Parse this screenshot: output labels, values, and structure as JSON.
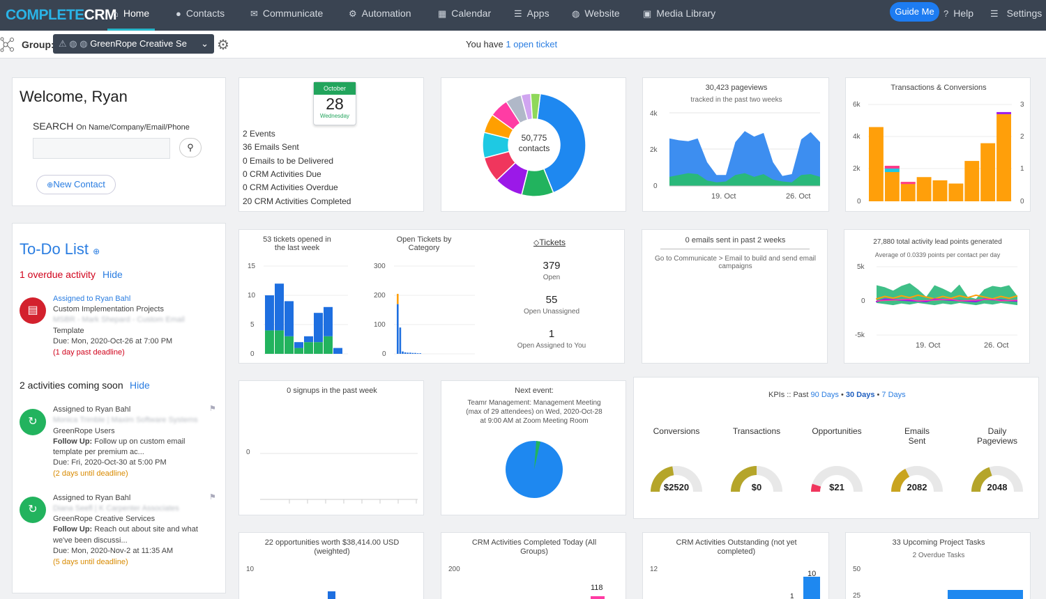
{
  "nav": {
    "logo_a": "COMPLETE",
    "logo_b": "CRM",
    "items": [
      {
        "label": "Home",
        "icon": "home-icon"
      },
      {
        "label": "Contacts",
        "icon": "user-icon"
      },
      {
        "label": "Communicate",
        "icon": "envelope-icon"
      },
      {
        "label": "Automation",
        "icon": "gears-icon"
      },
      {
        "label": "Calendar",
        "icon": "calendar-icon"
      },
      {
        "label": "Apps",
        "icon": "list-icon"
      },
      {
        "label": "Website",
        "icon": "globe-icon"
      },
      {
        "label": "Media Library",
        "icon": "folder-icon"
      }
    ],
    "guide": "Guide Me",
    "help": "Help",
    "settings": "Settings"
  },
  "subbar": {
    "group_label": "Group:",
    "group_value": "GreenRope Creative Se",
    "ticket_prefix": "You have",
    "ticket_link": "1 open ticket"
  },
  "welcome": {
    "title": "Welcome, Ryan",
    "search_label": "SEARCH",
    "search_hint": "On Name/Company/Email/Phone",
    "new_contact": "New Contact"
  },
  "calendar": {
    "month": "October",
    "day": "28",
    "weekday": "Wednesday",
    "stats": [
      {
        "n": "2",
        "label": "Events"
      },
      {
        "n": "36",
        "label": "Emails Sent"
      },
      {
        "n": "0",
        "label": "Emails to be Delivered"
      },
      {
        "n": "0",
        "label": "CRM Activities Due"
      },
      {
        "n": "0",
        "label": "CRM Activities Overdue"
      },
      {
        "n": "20",
        "label": "CRM Activities Completed"
      }
    ]
  },
  "contacts_donut": {
    "value": "50,775",
    "label": "contacts",
    "colors": [
      "#1e88f0",
      "#22b35e",
      "#9b19e8",
      "#f0365d",
      "#1ec9e3",
      "#ff9f00",
      "#ff3ca4",
      "#b0b8c8",
      "#d0a5f0",
      "#8fd85a"
    ],
    "fractions": [
      0.42,
      0.1,
      0.09,
      0.08,
      0.08,
      0.06,
      0.06,
      0.05,
      0.03,
      0.03
    ]
  },
  "pageviews": {
    "title": "30,423 pageviews",
    "subtitle": "tracked in the past two weeks",
    "y_ticks": [
      "4k",
      "2k",
      "0"
    ],
    "x_ticks": [
      "19. Oct",
      "26. Oct"
    ],
    "series_total": [
      2600,
      2500,
      2450,
      2600,
      1300,
      600,
      600,
      2400,
      3000,
      2700,
      2900,
      1300,
      550,
      650,
      2550,
      2950,
      2400
    ],
    "series_base": [
      500,
      600,
      700,
      650,
      300,
      200,
      250,
      600,
      700,
      500,
      650,
      350,
      250,
      200,
      600,
      650,
      500
    ],
    "ymax": 4000
  },
  "transactions": {
    "title": "Transactions & Conversions",
    "y_left": [
      "6k",
      "4k",
      "2k",
      "0"
    ],
    "y_right": [
      "3",
      "2",
      "1",
      "0"
    ],
    "bars": [
      4600,
      2200,
      1200,
      1500,
      1300,
      1100,
      2500,
      3600,
      5400
    ],
    "ymax": 6000
  },
  "todo": {
    "title": "To-Do List",
    "overdue": "1 overdue activity",
    "hide": "Hide",
    "overdue_item": {
      "assigned": "Assigned to Ryan Bahl",
      "project": "Custom Implementation Projects",
      "blurred": "MSBR - Mark Shepard - Custom Email",
      "line3": "Template",
      "due": "Due: Mon, 2020-Oct-26 at 7:00 PM",
      "status": "(1 day past deadline)"
    },
    "coming": "2 activities coming soon",
    "coming_items": [
      {
        "assigned": "Assigned to Ryan Bahl",
        "blurred": "Monica Trimble | Maxim Software Systems",
        "group": "GreenRope Users",
        "follow_label": "Follow Up:",
        "follow": "Follow up on custom email",
        "follow2": "template per premium ac...",
        "due": "Due: Fri, 2020-Oct-30 at 5:00 PM",
        "status": "(2 days until deadline)"
      },
      {
        "assigned": "Assigned to Ryan Bahl",
        "blurred": "Diana Seefl | K Carpenter Associates",
        "group": "GreenRope Creative Services",
        "follow_label": "Follow Up:",
        "follow": "Reach out about site and what",
        "follow2": "we've been discussi...",
        "due": "Due: Mon, 2020-Nov-2 at 11:35 AM",
        "status": "(5 days until deadline)"
      }
    ]
  },
  "tickets": {
    "week_title": "53 tickets opened in the last week",
    "week_y": [
      "15",
      "10",
      "5",
      "0"
    ],
    "week_bars": [
      {
        "blue": 6,
        "green": 4
      },
      {
        "blue": 8,
        "green": 4
      },
      {
        "blue": 6,
        "green": 3
      },
      {
        "blue": 1,
        "green": 1
      },
      {
        "blue": 1,
        "green": 2
      },
      {
        "blue": 5,
        "green": 2
      },
      {
        "blue": 5,
        "green": 3
      },
      {
        "blue": 1,
        "green": 0
      }
    ],
    "week_ymax": 15,
    "cat_title": "Open Tickets by Category",
    "cat_y": [
      "300",
      "200",
      "100",
      "0"
    ],
    "cat_bars": [
      {
        "orange": 35,
        "blue": 170
      },
      {
        "orange": 0,
        "blue": 90
      },
      {
        "orange": 0,
        "blue": 8
      },
      {
        "orange": 0,
        "blue": 5
      },
      {
        "orange": 0,
        "blue": 4
      },
      {
        "orange": 0,
        "blue": 4
      },
      {
        "orange": 0,
        "blue": 3
      },
      {
        "orange": 0,
        "blue": 3
      },
      {
        "orange": 0,
        "blue": 2
      },
      {
        "orange": 0,
        "blue": 2
      }
    ],
    "cat_ymax": 300,
    "link": "Tickets",
    "stats": [
      {
        "n": "379",
        "label": "Open"
      },
      {
        "n": "55",
        "label": "Open Unassigned"
      },
      {
        "n": "1",
        "label": "Open Assigned to You"
      }
    ]
  },
  "emails": {
    "title": "0 emails sent in past 2 weeks",
    "body": "Go to Communicate > Email to build and send email campaigns"
  },
  "leadpoints": {
    "title": "27,880 total activity lead points generated",
    "subtitle": "Average of 0.0339 points per contact per day",
    "y_ticks": [
      "5k",
      "0",
      "-5k"
    ],
    "x_ticks": [
      "19. Oct",
      "26. Oct"
    ],
    "green": [
      2300,
      2000,
      1500,
      2200,
      2600,
      1700,
      600,
      2300,
      1800,
      1200,
      2400,
      600,
      300,
      1700,
      2200,
      2000,
      2300,
      700
    ],
    "ymin": -5000,
    "ymax": 5000
  },
  "signups": {
    "title": "0 signups in the past week",
    "y_tick": "0"
  },
  "next_event": {
    "title": "Next event:",
    "body1": "Teamr Management: Management Meeting",
    "body2": "(max of 29 attendees) on Wed, 2020-Oct-28",
    "body3": "at 9:00 AM at Zoom Meeting Room"
  },
  "kpis": {
    "prefix": "KPIs :: Past",
    "p90": "90 Days",
    "p30": "30 Days",
    "p7": "7 Days",
    "items": [
      {
        "label": "Conversions",
        "label2": "",
        "value": "$2520",
        "fill": 0.45,
        "color": "#b5a52a"
      },
      {
        "label": "Transactions",
        "label2": "",
        "value": "$0",
        "fill": 0.5,
        "color": "#b5a52a"
      },
      {
        "label": "Opportunities",
        "label2": "",
        "value": "$21",
        "fill": 0.1,
        "color": "#f0365d"
      },
      {
        "label": "Emails",
        "label2": "Sent",
        "value": "2082",
        "fill": 0.35,
        "color": "#c9a41f"
      },
      {
        "label": "Daily",
        "label2": "Pageviews",
        "value": "2048",
        "fill": 0.4,
        "color": "#b5a52a"
      }
    ]
  },
  "bottom": [
    {
      "title": "22 opportunities worth $38,414.00 USD",
      "title2": "(weighted)",
      "y": "10"
    },
    {
      "title": "CRM Activities Completed Today (All",
      "title2": "Groups)",
      "y": "200",
      "val": "118"
    },
    {
      "title": "CRM Activities Outstanding (not yet",
      "title2": "completed)",
      "y": "12",
      "val": "10",
      "val2": "1"
    },
    {
      "title": "33 Upcoming Project Tasks",
      "title2": "2 Overdue Tasks",
      "y": "50",
      "y2": "25"
    }
  ]
}
